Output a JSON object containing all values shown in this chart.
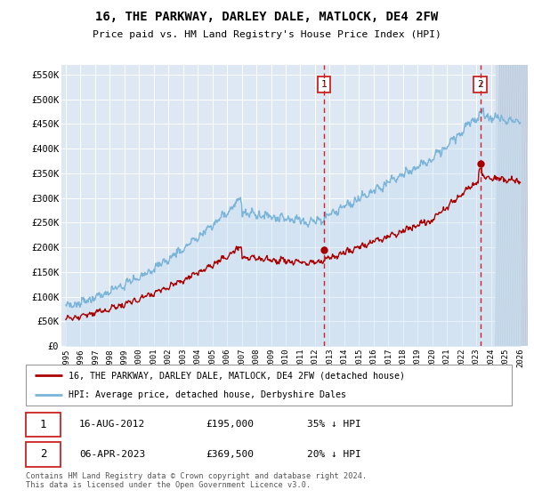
{
  "title": "16, THE PARKWAY, DARLEY DALE, MATLOCK, DE4 2FW",
  "subtitle": "Price paid vs. HM Land Registry's House Price Index (HPI)",
  "ylim": [
    0,
    570000
  ],
  "xlim_start": 1994.7,
  "xlim_end": 2026.5,
  "yticks": [
    0,
    50000,
    100000,
    150000,
    200000,
    250000,
    300000,
    350000,
    400000,
    450000,
    500000,
    550000
  ],
  "ytick_labels": [
    "£0",
    "£50K",
    "£100K",
    "£150K",
    "£200K",
    "£250K",
    "£300K",
    "£350K",
    "£400K",
    "£450K",
    "£500K",
    "£550K"
  ],
  "xticks": [
    1995,
    1996,
    1997,
    1998,
    1999,
    2000,
    2001,
    2002,
    2003,
    2004,
    2005,
    2006,
    2007,
    2008,
    2009,
    2010,
    2011,
    2012,
    2013,
    2014,
    2015,
    2016,
    2017,
    2018,
    2019,
    2020,
    2021,
    2022,
    2023,
    2024,
    2025,
    2026
  ],
  "hpi_color": "#7ab4d8",
  "hpi_fill_color": "#c8dff0",
  "price_color": "#aa0000",
  "vline_color": "#cc2222",
  "bg_color": "#dde8f4",
  "hatch_start": 2024.3,
  "sale1_x": 2012.62,
  "sale1_y": 195000,
  "sale2_x": 2023.27,
  "sale2_y": 369500,
  "legend_line1": "16, THE PARKWAY, DARLEY DALE, MATLOCK, DE4 2FW (detached house)",
  "legend_line2": "HPI: Average price, detached house, Derbyshire Dales",
  "sale1_date": "16-AUG-2012",
  "sale1_price": "£195,000",
  "sale1_hpi": "35% ↓ HPI",
  "sale2_date": "06-APR-2023",
  "sale2_price": "£369,500",
  "sale2_hpi": "20% ↓ HPI",
  "footnote": "Contains HM Land Registry data © Crown copyright and database right 2024.\nThis data is licensed under the Open Government Licence v3.0."
}
